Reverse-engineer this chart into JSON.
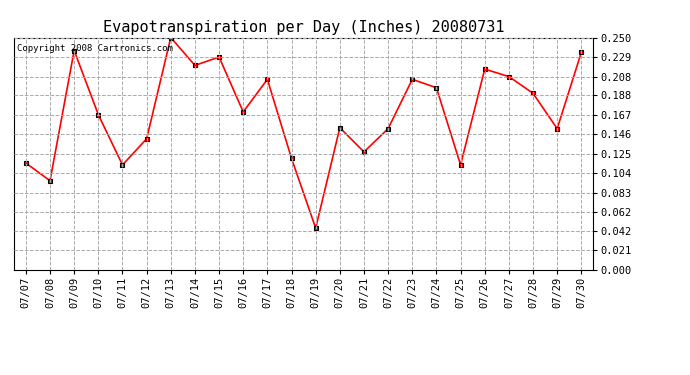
{
  "title": "Evapotranspiration per Day (Inches) 20080731",
  "copyright_text": "Copyright 2008 Cartronics.com",
  "x_labels": [
    "07/07",
    "07/08",
    "07/09",
    "07/10",
    "07/11",
    "07/12",
    "07/13",
    "07/14",
    "07/15",
    "07/16",
    "07/17",
    "07/18",
    "07/19",
    "07/20",
    "07/21",
    "07/22",
    "07/23",
    "07/24",
    "07/25",
    "07/26",
    "07/27",
    "07/28",
    "07/29",
    "07/30"
  ],
  "y_values": [
    0.115,
    0.096,
    0.236,
    0.167,
    0.113,
    0.141,
    0.25,
    0.22,
    0.229,
    0.17,
    0.205,
    0.12,
    0.045,
    0.153,
    0.127,
    0.152,
    0.205,
    0.196,
    0.113,
    0.216,
    0.208,
    0.19,
    0.152,
    0.234
  ],
  "y_ticks": [
    0.0,
    0.021,
    0.042,
    0.062,
    0.083,
    0.104,
    0.125,
    0.146,
    0.167,
    0.188,
    0.208,
    0.229,
    0.25
  ],
  "ylim": [
    0.0,
    0.25
  ],
  "line_color": "#ff0000",
  "marker": "s",
  "marker_size": 3,
  "marker_color": "#ff0000",
  "marker_edge_color": "#000000",
  "marker_edge_width": 0.8,
  "grid_color": "#aaaaaa",
  "grid_style": "--",
  "bg_color": "#ffffff",
  "title_fontsize": 11,
  "tick_fontsize": 7.5,
  "copyright_fontsize": 6.5
}
